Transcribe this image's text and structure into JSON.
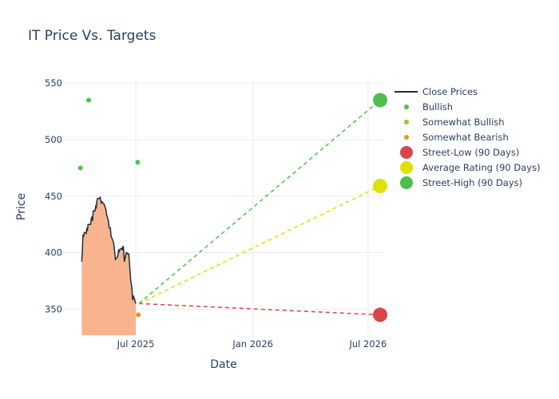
{
  "chart_data": {
    "type": "line",
    "title": "IT Price Vs. Targets",
    "xlabel": "Date",
    "ylabel": "Price",
    "x_range": [
      "2025-03-10",
      "2026-07-25"
    ],
    "ylim": [
      327,
      553
    ],
    "x_ticks": [
      {
        "date": "2025-07-01",
        "label": "Jul 2025"
      },
      {
        "date": "2026-01-01",
        "label": "Jan 2026"
      },
      {
        "date": "2026-07-01",
        "label": "Jul 2026"
      }
    ],
    "y_ticks": [
      350,
      400,
      450,
      500,
      550
    ],
    "grid": true,
    "legend_position": "right",
    "colors": {
      "close_line": "#1f2d3d",
      "close_fill": "#f9b48f",
      "bullish": "#4cc04c",
      "somewhat_bullish": "#8fce2c",
      "somewhat_bearish": "#e8961e",
      "street_low": "#d9454a",
      "average": "#dfdf00",
      "street_high": "#4cc04c"
    },
    "series": [
      {
        "name": "Close Prices",
        "kind": "line",
        "points": [
          [
            "2025-04-07",
            392
          ],
          [
            "2025-04-08",
            401
          ],
          [
            "2025-04-09",
            416
          ],
          [
            "2025-04-10",
            414
          ],
          [
            "2025-04-11",
            418
          ],
          [
            "2025-04-14",
            417
          ],
          [
            "2025-04-15",
            421
          ],
          [
            "2025-04-16",
            420
          ],
          [
            "2025-04-17",
            425
          ],
          [
            "2025-04-21",
            425
          ],
          [
            "2025-04-22",
            430
          ],
          [
            "2025-04-23",
            432
          ],
          [
            "2025-04-24",
            428
          ],
          [
            "2025-04-25",
            437
          ],
          [
            "2025-04-28",
            437
          ],
          [
            "2025-04-29",
            441
          ],
          [
            "2025-04-30",
            440
          ],
          [
            "2025-05-01",
            446
          ],
          [
            "2025-05-02",
            448
          ],
          [
            "2025-05-05",
            448
          ],
          [
            "2025-05-06",
            449
          ],
          [
            "2025-05-07",
            446
          ],
          [
            "2025-05-08",
            444
          ],
          [
            "2025-05-09",
            445
          ],
          [
            "2025-05-12",
            443
          ],
          [
            "2025-05-13",
            442
          ],
          [
            "2025-05-14",
            440
          ],
          [
            "2025-05-15",
            438
          ],
          [
            "2025-05-16",
            434
          ],
          [
            "2025-05-19",
            428
          ],
          [
            "2025-05-20",
            422
          ],
          [
            "2025-05-21",
            422
          ],
          [
            "2025-05-22",
            422
          ],
          [
            "2025-05-23",
            415
          ],
          [
            "2025-05-27",
            409
          ],
          [
            "2025-05-28",
            405
          ],
          [
            "2025-05-29",
            400
          ],
          [
            "2025-05-30",
            394
          ],
          [
            "2025-06-02",
            396
          ],
          [
            "2025-06-03",
            398
          ],
          [
            "2025-06-04",
            402
          ],
          [
            "2025-06-05",
            401
          ],
          [
            "2025-06-06",
            403
          ],
          [
            "2025-06-09",
            404
          ],
          [
            "2025-06-10",
            402
          ],
          [
            "2025-06-11",
            406
          ],
          [
            "2025-06-12",
            402
          ],
          [
            "2025-06-13",
            392
          ],
          [
            "2025-06-16",
            400
          ],
          [
            "2025-06-17",
            400
          ],
          [
            "2025-06-18",
            399
          ],
          [
            "2025-06-20",
            399
          ],
          [
            "2025-06-23",
            375
          ],
          [
            "2025-06-24",
            372
          ],
          [
            "2025-06-25",
            368
          ],
          [
            "2025-06-26",
            358
          ],
          [
            "2025-06-27",
            362
          ],
          [
            "2025-06-30",
            357
          ],
          [
            "2025-07-01",
            355
          ]
        ]
      },
      {
        "name": "Bullish",
        "kind": "markers",
        "points": [
          [
            "2025-04-05",
            475
          ],
          [
            "2025-04-18",
            535
          ],
          [
            "2025-07-04",
            480
          ]
        ]
      },
      {
        "name": "Somewhat Bullish",
        "kind": "markers",
        "points": []
      },
      {
        "name": "Somewhat Bearish",
        "kind": "markers",
        "points": [
          [
            "2025-07-05",
            345
          ]
        ]
      },
      {
        "name": "Street-Low (90 Days)",
        "kind": "target",
        "start": [
          "2025-07-06",
          355
        ],
        "end": [
          "2026-07-20",
          345
        ]
      },
      {
        "name": "Average Rating (90 Days)",
        "kind": "target",
        "start": [
          "2025-07-06",
          355
        ],
        "end": [
          "2026-07-20",
          459
        ]
      },
      {
        "name": "Street-High (90 Days)",
        "kind": "target",
        "start": [
          "2025-07-06",
          355
        ],
        "end": [
          "2026-07-20",
          535
        ]
      }
    ]
  }
}
